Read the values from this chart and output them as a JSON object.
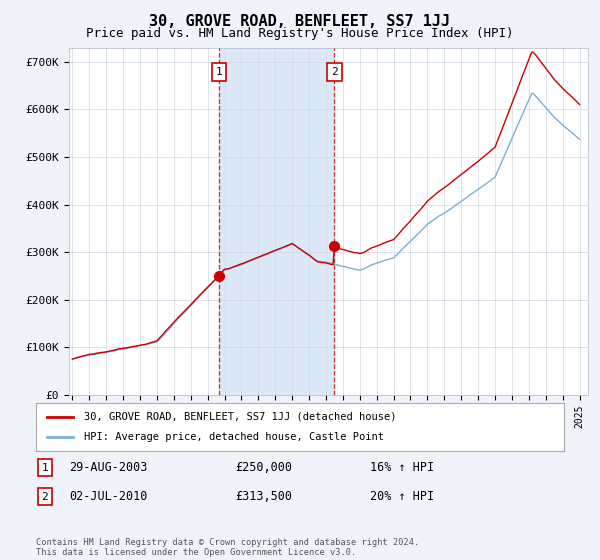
{
  "title": "30, GROVE ROAD, BENFLEET, SS7 1JJ",
  "subtitle": "Price paid vs. HM Land Registry's House Price Index (HPI)",
  "title_fontsize": 11,
  "subtitle_fontsize": 9,
  "ylabel_ticks": [
    "£0",
    "£100K",
    "£200K",
    "£300K",
    "£400K",
    "£500K",
    "£600K",
    "£700K"
  ],
  "ytick_values": [
    0,
    100000,
    200000,
    300000,
    400000,
    500000,
    600000,
    700000
  ],
  "ylim": [
    0,
    730000
  ],
  "xlim_start": 1994.8,
  "xlim_end": 2025.5,
  "hpi_color": "#7ab0d4",
  "price_color": "#cc0000",
  "shade_color": "#dce8f5",
  "sale1_date": 2003.66,
  "sale1_price": 250000,
  "sale2_date": 2010.5,
  "sale2_price": 313500,
  "annotation1_label": "1",
  "annotation1_date": "29-AUG-2003",
  "annotation1_price": "£250,000",
  "annotation1_hpi": "16% ↑ HPI",
  "annotation2_label": "2",
  "annotation2_date": "02-JUL-2010",
  "annotation2_price": "£313,500",
  "annotation2_hpi": "20% ↑ HPI",
  "legend_label1": "30, GROVE ROAD, BENFLEET, SS7 1JJ (detached house)",
  "legend_label2": "HPI: Average price, detached house, Castle Point",
  "footer": "Contains HM Land Registry data © Crown copyright and database right 2024.\nThis data is licensed under the Open Government Licence v3.0.",
  "background_color": "#f0f4fa",
  "plot_bg_color": "#ffffff"
}
